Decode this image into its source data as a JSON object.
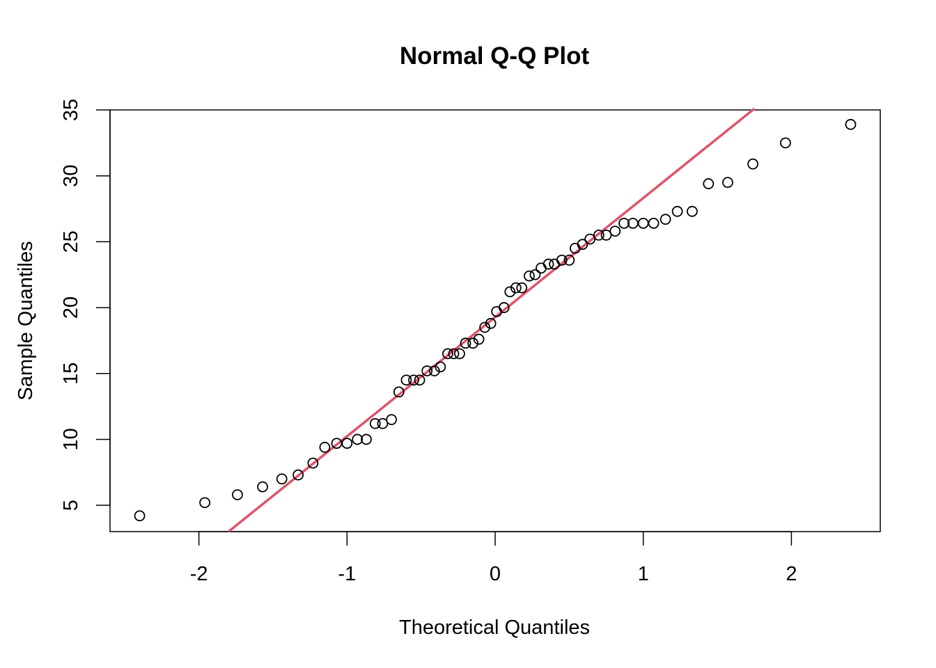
{
  "chart_data": {
    "type": "scatter",
    "title": "Normal Q-Q Plot",
    "xlabel": "Theoretical Quantiles",
    "ylabel": "Sample Quantiles",
    "xlim": [
      -2.6,
      2.6
    ],
    "ylim": [
      3,
      35
    ],
    "xticks": [
      -2,
      -1,
      0,
      1,
      2
    ],
    "xtick_labels": [
      "-2",
      "-1",
      "0",
      "1",
      "2"
    ],
    "yticks": [
      5,
      10,
      15,
      20,
      25,
      30,
      35
    ],
    "ytick_labels": [
      "5",
      "10",
      "15",
      "20",
      "25",
      "30",
      "35"
    ],
    "grid": false,
    "legend": "none",
    "series": [
      {
        "marker": "open-circle",
        "color": "#000000",
        "points": [
          [
            -2.4,
            4.2
          ],
          [
            -1.96,
            5.2
          ],
          [
            -1.74,
            5.8
          ],
          [
            -1.57,
            6.4
          ],
          [
            -1.44,
            7.0
          ],
          [
            -1.33,
            7.3
          ],
          [
            -1.23,
            8.2
          ],
          [
            -1.15,
            9.4
          ],
          [
            -1.07,
            9.7
          ],
          [
            -1.0,
            9.7
          ],
          [
            -0.93,
            10.0
          ],
          [
            -0.87,
            10.0
          ],
          [
            -0.81,
            11.2
          ],
          [
            -0.76,
            11.2
          ],
          [
            -0.7,
            11.5
          ],
          [
            -0.65,
            13.6
          ],
          [
            -0.6,
            14.5
          ],
          [
            -0.55,
            14.5
          ],
          [
            -0.51,
            14.5
          ],
          [
            -0.46,
            15.2
          ],
          [
            -0.41,
            15.2
          ],
          [
            -0.37,
            15.5
          ],
          [
            -0.32,
            16.5
          ],
          [
            -0.28,
            16.5
          ],
          [
            -0.24,
            16.5
          ],
          [
            -0.2,
            17.3
          ],
          [
            -0.15,
            17.3
          ],
          [
            -0.11,
            17.6
          ],
          [
            -0.07,
            18.5
          ],
          [
            -0.03,
            18.8
          ],
          [
            0.01,
            19.7
          ],
          [
            0.06,
            20.0
          ],
          [
            0.1,
            21.2
          ],
          [
            0.14,
            21.5
          ],
          [
            0.18,
            21.5
          ],
          [
            0.23,
            22.4
          ],
          [
            0.27,
            22.5
          ],
          [
            0.31,
            23.0
          ],
          [
            0.36,
            23.3
          ],
          [
            0.4,
            23.3
          ],
          [
            0.45,
            23.6
          ],
          [
            0.5,
            23.6
          ],
          [
            0.54,
            24.5
          ],
          [
            0.59,
            24.8
          ],
          [
            0.64,
            25.2
          ],
          [
            0.7,
            25.5
          ],
          [
            0.75,
            25.5
          ],
          [
            0.81,
            25.8
          ],
          [
            0.87,
            26.4
          ],
          [
            0.93,
            26.4
          ],
          [
            1.0,
            26.4
          ],
          [
            1.07,
            26.4
          ],
          [
            1.15,
            26.7
          ],
          [
            1.23,
            27.3
          ],
          [
            1.33,
            27.3
          ],
          [
            1.44,
            29.4
          ],
          [
            1.57,
            29.5
          ],
          [
            1.74,
            30.9
          ],
          [
            1.96,
            32.5
          ],
          [
            2.4,
            33.9
          ]
        ]
      }
    ],
    "reference_line": {
      "color": "#DF536B",
      "from": [
        -1.8,
        3.0
      ],
      "to": [
        1.75,
        35.1
      ]
    }
  }
}
